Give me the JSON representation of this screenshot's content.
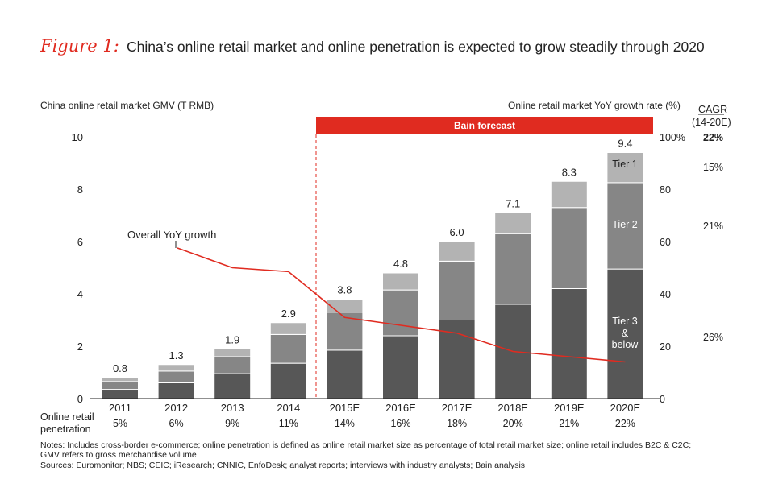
{
  "figure_label": "Figure 1:",
  "title": "China’s online retail market and online penetration is expected to grow steadily through 2020",
  "chart_data": {
    "type": "bar",
    "stacked": true,
    "categories": [
      "2011",
      "2012",
      "2013",
      "2014",
      "2015E",
      "2016E",
      "2017E",
      "2018E",
      "2019E",
      "2020E"
    ],
    "ylabel": "China online retail market GMV (T RMB)",
    "ylim": [
      0,
      10
    ],
    "yticks": [
      "0",
      "2",
      "4",
      "6",
      "8",
      "10"
    ],
    "y2label": "Online retail market YoY growth rate (%)",
    "y2lim": [
      0,
      100
    ],
    "y2ticks": [
      "0",
      "20",
      "40",
      "60",
      "80",
      "100%"
    ],
    "totals": [
      0.8,
      1.3,
      1.9,
      2.9,
      3.8,
      4.8,
      6.0,
      7.1,
      8.3,
      9.4
    ],
    "total_labels": [
      "0.8",
      "1.3",
      "1.9",
      "2.9",
      "3.8",
      "4.8",
      "6.0",
      "7.1",
      "8.3",
      "9.4"
    ],
    "series": [
      {
        "name": "Tier 3 & below",
        "color": "#575757",
        "values": [
          0.35,
          0.6,
          0.95,
          1.35,
          1.85,
          2.4,
          3.0,
          3.6,
          4.2,
          4.95
        ]
      },
      {
        "name": "Tier 2",
        "color": "#868686",
        "values": [
          0.3,
          0.45,
          0.65,
          1.1,
          1.45,
          1.75,
          2.25,
          2.7,
          3.1,
          3.3
        ]
      },
      {
        "name": "Tier 1",
        "color": "#b3b3b3",
        "values": [
          0.15,
          0.25,
          0.3,
          0.45,
          0.5,
          0.65,
          0.75,
          0.8,
          1.0,
          1.15
        ]
      }
    ],
    "segment_labels": {
      "tier1": "Tier 1",
      "tier2": "Tier 2",
      "tier3_line1": "Tier 3",
      "tier3_line2": "&",
      "tier3_line3": "below"
    },
    "growth_line": {
      "name": "Overall YoY growth",
      "color": "#e02b20",
      "x": [
        "2013",
        "2014",
        "2015E",
        "2016E",
        "2017E",
        "2018E",
        "2019E",
        "2020E"
      ],
      "values": [
        50,
        48.5,
        31,
        28,
        25,
        18,
        16,
        14
      ]
    },
    "forecast_banner": "Bain forecast",
    "forecast_start": "2015E",
    "cagr": {
      "title_line1": "CAGR",
      "title_line2": "(14-20E)",
      "total": "22%",
      "tier1": "15%",
      "tier2": "21%",
      "tier3": "26%"
    },
    "penetration": {
      "label_line1": "Online retail",
      "label_line2": "penetration",
      "values": [
        "5%",
        "6%",
        "9%",
        "11%",
        "14%",
        "16%",
        "18%",
        "20%",
        "21%",
        "22%"
      ]
    }
  },
  "notes": {
    "line1": "Notes: Includes cross-border e-commerce; online penetration is defined as online retail market size as percentage of total retail market size; online retail includes B2C & C2C;",
    "line2": "GMV refers to gross merchandise volume",
    "line3": "Sources: Euromonitor; NBS; CEIC; iResearch; CNNIC, EnfoDesk; analyst reports; interviews with industry analysts; Bain analysis"
  }
}
